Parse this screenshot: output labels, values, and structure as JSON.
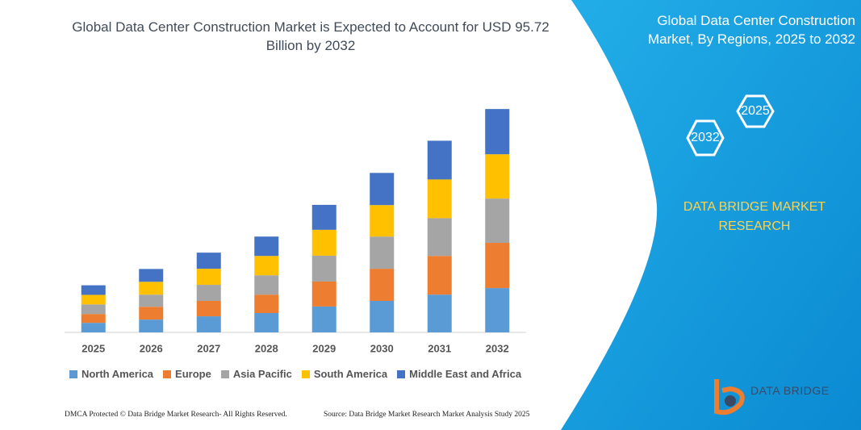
{
  "chart_data": {
    "type": "bar",
    "stacked": true,
    "title": "Global Data Center Construction Market is Expected to Account for USD 95.72 Billion by 2032",
    "categories": [
      "2025",
      "2026",
      "2027",
      "2028",
      "2029",
      "2030",
      "2031",
      "2032"
    ],
    "series": [
      {
        "name": "North America",
        "color": "#5b9bd5",
        "values": [
          4.1,
          5.5,
          6.9,
          8.3,
          11.1,
          13.5,
          16.2,
          19.0
        ]
      },
      {
        "name": "Europe",
        "color": "#ed7d31",
        "values": [
          3.8,
          5.5,
          6.6,
          7.9,
          10.7,
          13.8,
          16.6,
          19.4
        ]
      },
      {
        "name": "Asia Pacific",
        "color": "#a5a5a5",
        "values": [
          4.1,
          5.2,
          6.9,
          8.3,
          11.1,
          13.8,
          16.2,
          19.0
        ]
      },
      {
        "name": "South America",
        "color": "#ffc000",
        "values": [
          4.1,
          5.5,
          6.9,
          8.3,
          11.1,
          13.5,
          16.6,
          19.0
        ]
      },
      {
        "name": "Middle East and Africa",
        "color": "#4472c4",
        "values": [
          4.1,
          5.5,
          6.9,
          8.3,
          10.7,
          13.8,
          16.6,
          19.4
        ]
      }
    ],
    "ylim": [
      0,
      100
    ]
  },
  "panel": {
    "title": "Global Data Center Construction Market, By Regions, 2025 to 2032",
    "hexagons": [
      "2025",
      "2032"
    ],
    "brand": "DATA BRIDGE MARKET RESEARCH"
  },
  "footer": {
    "left": "DMCA Protected © Data Bridge Market Research-  All Rights Reserved.",
    "right": "Source: Data Bridge Market Research  Market Analysis Study 2025"
  },
  "logo": "DATA BRIDGE"
}
